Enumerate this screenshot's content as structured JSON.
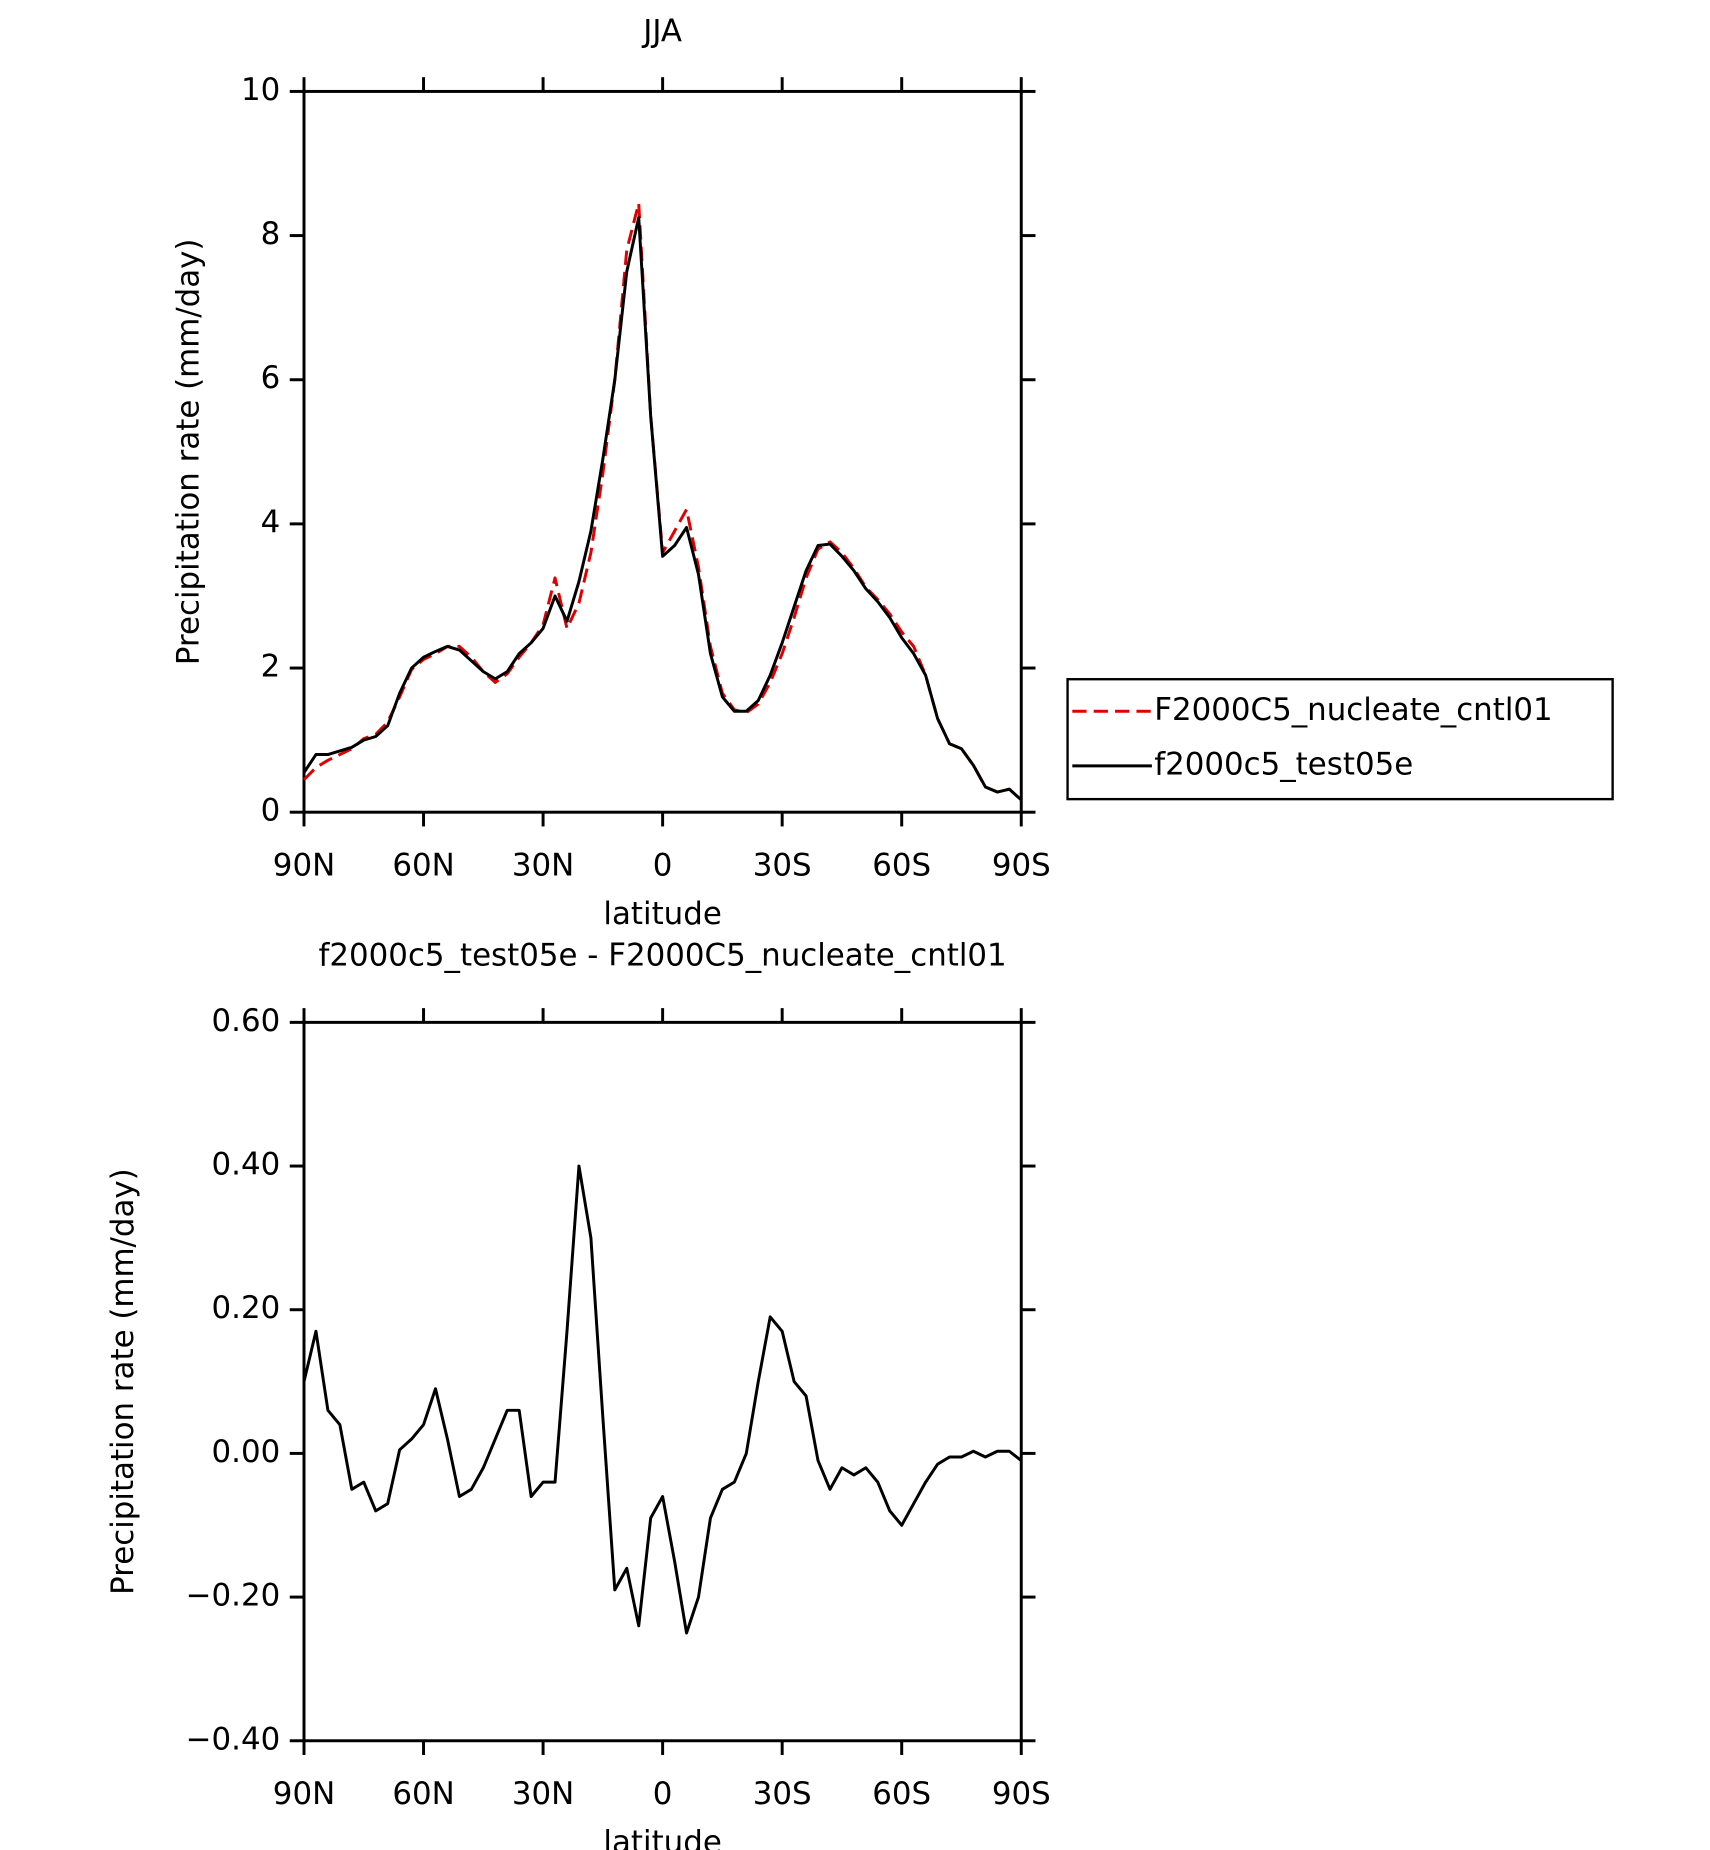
{
  "chart_data": [
    {
      "type": "line",
      "title": "JJA",
      "xlabel": "latitude",
      "ylabel": "Precipitation rate (mm/day)",
      "x": [
        90,
        87,
        84,
        81,
        78,
        75,
        72,
        69,
        66,
        63,
        60,
        57,
        54,
        51,
        48,
        45,
        42,
        39,
        36,
        33,
        30,
        27,
        24,
        21,
        18,
        15,
        12,
        9,
        6,
        3,
        0,
        -3,
        -6,
        -9,
        -12,
        -15,
        -18,
        -21,
        -24,
        -27,
        -30,
        -33,
        -36,
        -39,
        -42,
        -45,
        -48,
        -51,
        -54,
        -57,
        -60,
        -63,
        -66,
        -69,
        -72,
        -75,
        -78,
        -81,
        -84,
        -87,
        -90
      ],
      "series": [
        {
          "name": "F2000C5_nucleate_cntl01",
          "color": "#e00000",
          "linestyle": "dashed",
          "values": [
            0.45,
            0.62,
            0.72,
            0.8,
            0.88,
            1.02,
            1.08,
            1.25,
            1.6,
            1.98,
            2.12,
            2.2,
            2.3,
            2.3,
            2.15,
            1.95,
            1.8,
            1.92,
            2.15,
            2.35,
            2.6,
            3.25,
            2.55,
            2.9,
            3.6,
            4.7,
            6.0,
            7.8,
            8.45,
            5.5,
            3.6,
            3.9,
            4.2,
            3.4,
            2.3,
            1.65,
            1.42,
            1.38,
            1.5,
            1.8,
            2.2,
            2.7,
            3.25,
            3.65,
            3.75,
            3.6,
            3.38,
            3.12,
            2.95,
            2.75,
            2.5,
            2.3,
            1.9,
            1.3,
            0.95,
            0.88,
            0.65,
            0.35,
            0.28,
            0.32,
            0.17
          ]
        },
        {
          "name": "f2000c5_test05e",
          "color": "#000000",
          "linestyle": "solid",
          "values": [
            0.55,
            0.8,
            0.8,
            0.85,
            0.9,
            1.0,
            1.05,
            1.2,
            1.65,
            2.0,
            2.15,
            2.23,
            2.3,
            2.25,
            2.1,
            1.95,
            1.85,
            1.95,
            2.2,
            2.35,
            2.55,
            3.0,
            2.65,
            3.2,
            3.9,
            4.9,
            6.0,
            7.5,
            8.25,
            5.5,
            3.55,
            3.7,
            3.95,
            3.3,
            2.2,
            1.6,
            1.4,
            1.4,
            1.55,
            1.9,
            2.35,
            2.85,
            3.35,
            3.7,
            3.72,
            3.55,
            3.35,
            3.1,
            2.92,
            2.7,
            2.42,
            2.2,
            1.9,
            1.3,
            0.95,
            0.88,
            0.65,
            0.35,
            0.28,
            0.32,
            0.17
          ]
        }
      ],
      "xlim": [
        90,
        -90
      ],
      "xticks": [
        {
          "value": 90,
          "label": "90N"
        },
        {
          "value": 60,
          "label": "60N"
        },
        {
          "value": 30,
          "label": "30N"
        },
        0,
        {
          "value": -30,
          "label": "30S"
        },
        {
          "value": -60,
          "label": "60S"
        },
        {
          "value": -90,
          "label": "90S"
        }
      ],
      "ylim": [
        0,
        10
      ],
      "yticks": [
        0,
        2,
        4,
        6,
        8,
        10
      ],
      "legend": "right"
    },
    {
      "type": "line",
      "title": "f2000c5_test05e - F2000C5_nucleate_cntl01",
      "xlabel": "latitude",
      "ylabel": "Precipitation rate (mm/day)",
      "x": [
        90,
        87,
        84,
        81,
        78,
        75,
        72,
        69,
        66,
        63,
        60,
        57,
        54,
        51,
        48,
        45,
        42,
        39,
        36,
        33,
        30,
        27,
        24,
        21,
        18,
        15,
        12,
        9,
        6,
        3,
        0,
        -3,
        -6,
        -9,
        -12,
        -15,
        -18,
        -21,
        -24,
        -27,
        -30,
        -33,
        -36,
        -39,
        -42,
        -45,
        -48,
        -51,
        -54,
        -57,
        -60,
        -63,
        -66,
        -69,
        -72,
        -75,
        -78,
        -81,
        -84,
        -87,
        -90
      ],
      "series": [
        {
          "color": "#000000",
          "linestyle": "solid",
          "values": [
            0.1,
            0.17,
            0.06,
            0.04,
            -0.05,
            -0.04,
            -0.08,
            -0.07,
            0.005,
            0.02,
            0.04,
            0.09,
            0.02,
            -0.06,
            -0.05,
            -0.02,
            0.02,
            0.06,
            0.06,
            -0.06,
            -0.04,
            -0.04,
            0.17,
            0.4,
            0.3,
            0.05,
            -0.19,
            -0.16,
            -0.24,
            -0.09,
            -0.06,
            -0.15,
            -0.25,
            -0.2,
            -0.09,
            -0.05,
            -0.04,
            0.0,
            0.1,
            0.19,
            0.17,
            0.1,
            0.08,
            -0.01,
            -0.05,
            -0.02,
            -0.03,
            -0.02,
            -0.04,
            -0.08,
            -0.1,
            -0.07,
            -0.04,
            -0.015,
            -0.005,
            -0.005,
            0.003,
            -0.005,
            0.003,
            0.003,
            -0.01
          ]
        }
      ],
      "xlim": [
        90,
        -90
      ],
      "xticks": [
        {
          "value": 90,
          "label": "90N"
        },
        {
          "value": 60,
          "label": "60N"
        },
        {
          "value": 30,
          "label": "30N"
        },
        0,
        {
          "value": -30,
          "label": "30S"
        },
        {
          "value": -60,
          "label": "60S"
        },
        {
          "value": -90,
          "label": "90S"
        }
      ],
      "ylim": [
        -0.4,
        0.6
      ],
      "yticks": [
        {
          "value": -0.4,
          "label": "−0.40"
        },
        {
          "value": -0.2,
          "label": "−0.20"
        },
        {
          "value": 0,
          "label": "0.00"
        },
        {
          "value": 0.2,
          "label": "0.20"
        },
        {
          "value": 0.4,
          "label": "0.40"
        },
        {
          "value": 0.6,
          "label": "0.60"
        }
      ]
    }
  ]
}
